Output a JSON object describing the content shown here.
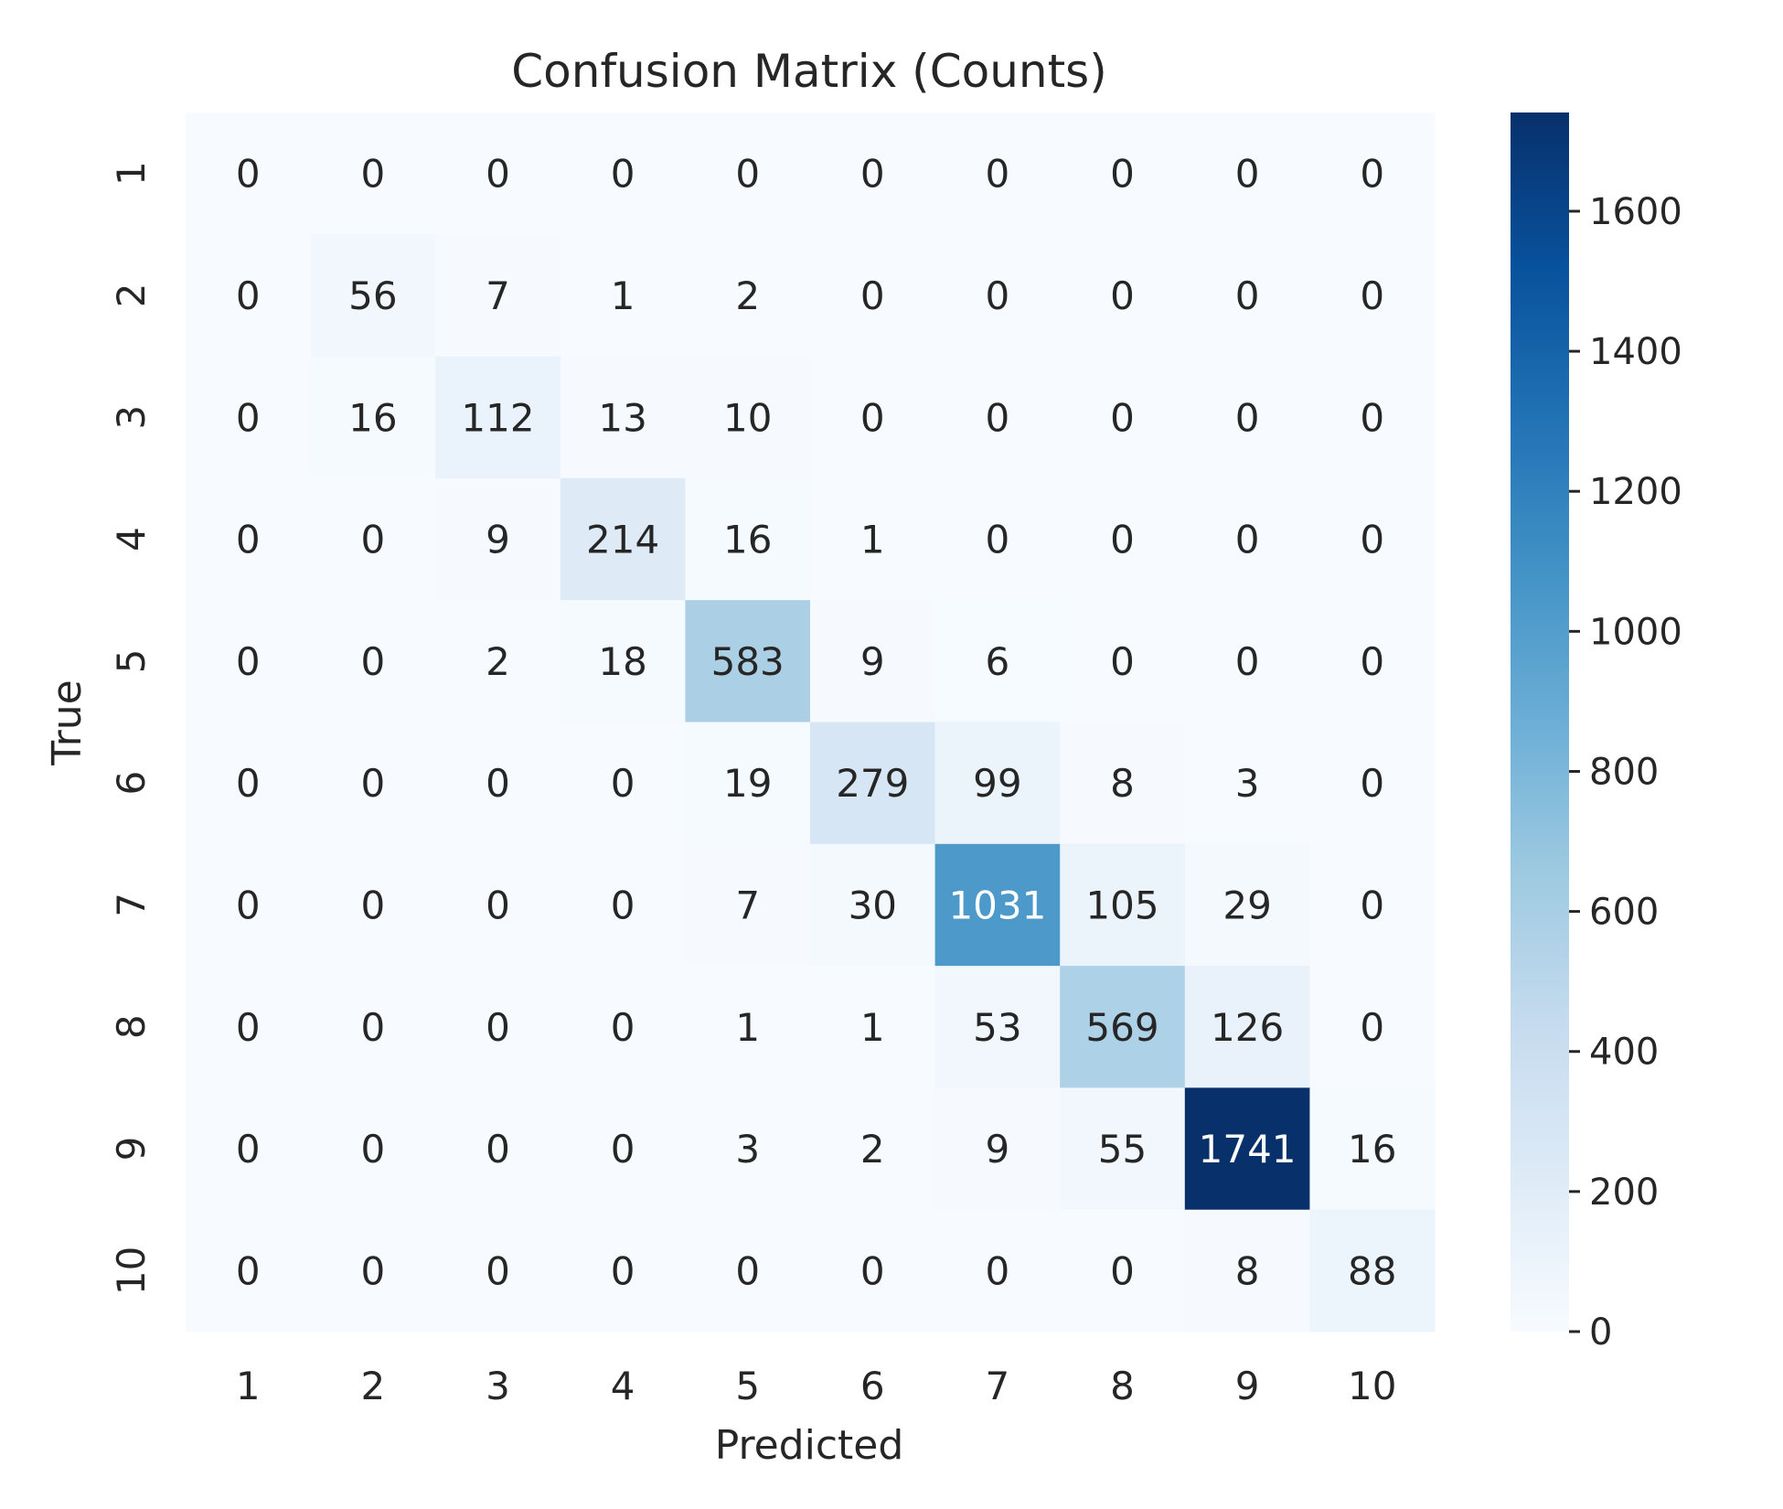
{
  "chart_data": {
    "type": "heatmap",
    "title": "Confusion Matrix (Counts)",
    "xlabel": "Predicted",
    "ylabel": "True",
    "x_categories": [
      "1",
      "2",
      "3",
      "4",
      "5",
      "6",
      "7",
      "8",
      "9",
      "10"
    ],
    "y_categories": [
      "1",
      "2",
      "3",
      "4",
      "5",
      "6",
      "7",
      "8",
      "9",
      "10"
    ],
    "values": [
      [
        0,
        0,
        0,
        0,
        0,
        0,
        0,
        0,
        0,
        0
      ],
      [
        0,
        56,
        7,
        1,
        2,
        0,
        0,
        0,
        0,
        0
      ],
      [
        0,
        16,
        112,
        13,
        10,
        0,
        0,
        0,
        0,
        0
      ],
      [
        0,
        0,
        9,
        214,
        16,
        1,
        0,
        0,
        0,
        0
      ],
      [
        0,
        0,
        2,
        18,
        583,
        9,
        6,
        0,
        0,
        0
      ],
      [
        0,
        0,
        0,
        0,
        19,
        279,
        99,
        8,
        3,
        0
      ],
      [
        0,
        0,
        0,
        0,
        7,
        30,
        1031,
        105,
        29,
        0
      ],
      [
        0,
        0,
        0,
        0,
        1,
        1,
        53,
        569,
        126,
        0
      ],
      [
        0,
        0,
        0,
        0,
        3,
        2,
        9,
        55,
        1741,
        16
      ],
      [
        0,
        0,
        0,
        0,
        0,
        0,
        0,
        0,
        8,
        88
      ]
    ],
    "colorbar": {
      "range": [
        0,
        1741
      ],
      "ticks": [
        0,
        200,
        400,
        600,
        800,
        1000,
        1200,
        1400,
        1600
      ]
    },
    "colormap": "Blues",
    "colors": {
      "low": "#f7fbff",
      "high": "#08306b",
      "text_dark": "#262626",
      "text_light": "#ffffff"
    },
    "grid": false
  }
}
